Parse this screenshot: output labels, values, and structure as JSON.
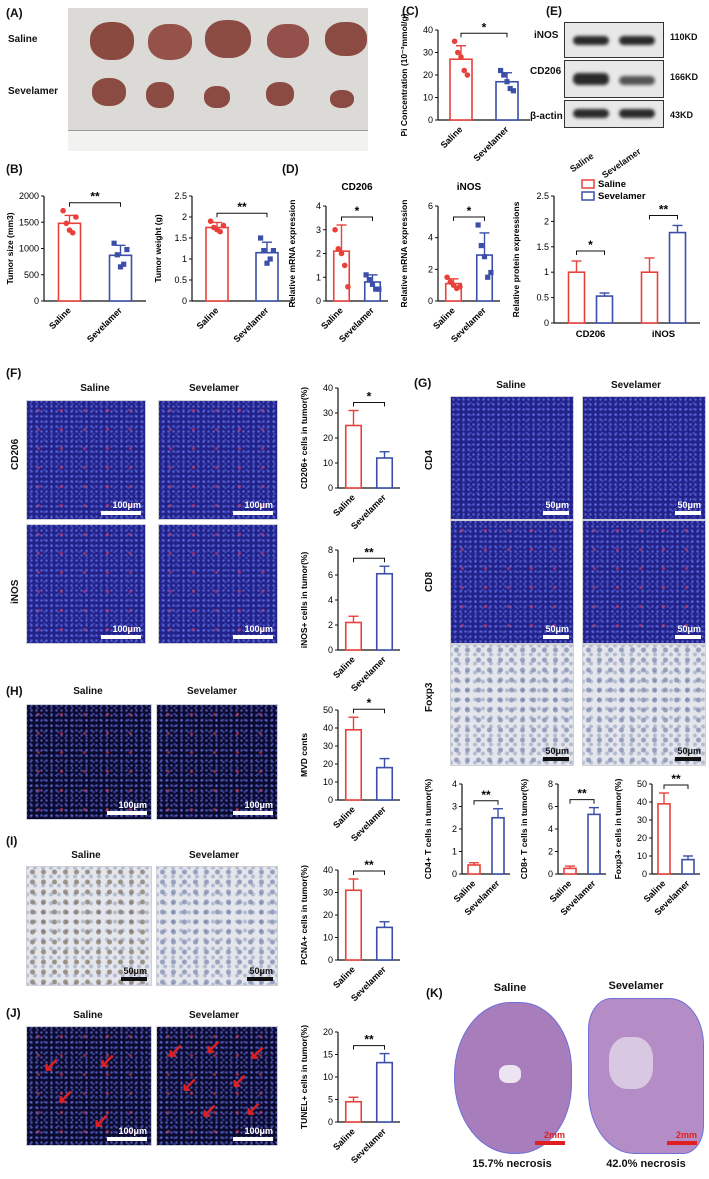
{
  "panels": {
    "a": "(A)",
    "b": "(B)",
    "c": "(C)",
    "d": "(D)",
    "e": "(E)",
    "f": "(F)",
    "g": "(G)",
    "h": "(H)",
    "i": "(I)",
    "j": "(J)",
    "k": "(K)"
  },
  "labels": {
    "saline": "Saline",
    "sevelamer": "Sevelamer",
    "cd206": "CD206",
    "inos": "iNOS",
    "cd4": "CD4",
    "cd8": "CD8",
    "foxp3": "Foxp3",
    "bactin": "β-actin"
  },
  "blot": {
    "kd_inos": "110KD",
    "kd_cd206": "166KD",
    "kd_bactin": "43KD"
  },
  "scale": {
    "s100": "100μm",
    "s50": "50μm",
    "s2mm": "2mm"
  },
  "necrosis": {
    "saline": "15.7% necrosis",
    "sevelamer": "42.0% necrosis"
  },
  "colors": {
    "saline": "#e8413b",
    "sevelamer": "#3b4fa8"
  },
  "chart_data": [
    {
      "id": "B1",
      "type": "bar",
      "categories": [
        "Saline",
        "Sevelamer"
      ],
      "values": [
        1480,
        870
      ],
      "errors": [
        150,
        190
      ],
      "ylabel": "Tumor  size (mm3)",
      "ylim": [
        0,
        2000
      ],
      "yticks": [
        0,
        500,
        1000,
        1500,
        2000
      ],
      "sig": "**",
      "points": [
        [
          1720,
          1480,
          1350,
          1300,
          1600
        ],
        [
          1100,
          880,
          650,
          700,
          980
        ]
      ]
    },
    {
      "id": "B2",
      "type": "bar",
      "categories": [
        "Saline",
        "Sevelamer"
      ],
      "values": [
        1.75,
        1.15
      ],
      "errors": [
        0.12,
        0.25
      ],
      "ylabel": "Tumor weight (g)",
      "ylim": [
        0,
        2.5
      ],
      "yticks": [
        0,
        0.5,
        1.0,
        1.5,
        2.0,
        2.5
      ],
      "sig": "**",
      "points": [
        [
          1.9,
          1.75,
          1.7,
          1.65,
          1.8
        ],
        [
          1.5,
          1.2,
          0.9,
          1.0,
          1.2
        ]
      ]
    },
    {
      "id": "C",
      "type": "bar",
      "categories": [
        "Saline",
        "Sevelamer"
      ],
      "values": [
        27,
        17
      ],
      "errors": [
        6,
        4
      ],
      "ylabel": "Pi Concentration (10⁻³mmol/g)",
      "ylim": [
        0,
        40
      ],
      "yticks": [
        0,
        10,
        20,
        30,
        40
      ],
      "sig": "*",
      "points": [
        [
          35,
          30,
          28,
          22,
          20
        ],
        [
          22,
          20,
          17,
          14,
          13
        ]
      ]
    },
    {
      "id": "D1",
      "type": "bar",
      "title": "CD206",
      "categories": [
        "Saline",
        "Sevelamer"
      ],
      "values": [
        2.1,
        0.8
      ],
      "errors": [
        1.1,
        0.3
      ],
      "ylabel": "Relative mRNA expression",
      "ylim": [
        0,
        4
      ],
      "yticks": [
        0,
        1,
        2,
        3,
        4
      ],
      "sig": "*",
      "points": [
        [
          3.0,
          2.2,
          2.0,
          1.5,
          0.6
        ],
        [
          1.1,
          0.9,
          0.7,
          0.5,
          0.5
        ]
      ]
    },
    {
      "id": "D2",
      "type": "bar",
      "title": "iNOS",
      "categories": [
        "Saline",
        "Sevelamer"
      ],
      "values": [
        1.1,
        2.9
      ],
      "errors": [
        0.3,
        1.4
      ],
      "ylabel": "Relative mRNA expression",
      "ylim": [
        0,
        6
      ],
      "yticks": [
        0,
        2,
        4,
        6
      ],
      "sig": "*",
      "points": [
        [
          1.5,
          1.2,
          1.0,
          0.8,
          0.9
        ],
        [
          4.8,
          3.5,
          2.8,
          1.5,
          1.8
        ]
      ]
    },
    {
      "id": "E",
      "type": "bar",
      "categories": [
        "CD206",
        "iNOS"
      ],
      "series": [
        {
          "name": "Saline",
          "values": [
            1.0,
            1.0
          ],
          "errors": [
            0.22,
            0.28
          ]
        },
        {
          "name": "Sevelamer",
          "values": [
            0.53,
            1.78
          ],
          "errors": [
            0.06,
            0.14
          ]
        }
      ],
      "ylabel": "Relative protein expressions",
      "ylim": [
        0,
        2.5
      ],
      "yticks": [
        0,
        0.5,
        1.0,
        1.5,
        2.0,
        2.5
      ],
      "sig": [
        "*",
        "**"
      ]
    },
    {
      "id": "F1",
      "type": "bar",
      "categories": [
        "Saline",
        "Sevelamer"
      ],
      "values": [
        25,
        12
      ],
      "errors": [
        6,
        2.5
      ],
      "ylabel": "CD206+ cells in tumor(%)",
      "ylim": [
        0,
        40
      ],
      "yticks": [
        0,
        10,
        20,
        30,
        40
      ],
      "sig": "*"
    },
    {
      "id": "F2",
      "type": "bar",
      "categories": [
        "Saline",
        "Sevelamer"
      ],
      "values": [
        2.2,
        6.1
      ],
      "errors": [
        0.5,
        0.6
      ],
      "ylabel": "iNOS+ cells in tumor(%)",
      "ylim": [
        0,
        8
      ],
      "yticks": [
        0,
        2,
        4,
        6,
        8
      ],
      "sig": "**"
    },
    {
      "id": "G1",
      "type": "bar",
      "categories": [
        "Saline",
        "Sevelamer"
      ],
      "values": [
        0.4,
        2.5
      ],
      "errors": [
        0.1,
        0.4
      ],
      "ylabel": "CD4+ T cells in tumor(%)",
      "ylim": [
        0,
        4
      ],
      "yticks": [
        0,
        1,
        2,
        3,
        4
      ],
      "sig": "**"
    },
    {
      "id": "G2",
      "type": "bar",
      "categories": [
        "Saline",
        "Sevelamer"
      ],
      "values": [
        0.5,
        5.3
      ],
      "errors": [
        0.2,
        0.6
      ],
      "ylabel": "CD8+ T cells in tumor(%)",
      "ylim": [
        0,
        8
      ],
      "yticks": [
        0,
        2,
        4,
        6,
        8
      ],
      "sig": "**"
    },
    {
      "id": "G3",
      "type": "bar",
      "categories": [
        "Saline",
        "Sevelamer"
      ],
      "values": [
        39,
        8
      ],
      "errors": [
        6,
        2
      ],
      "ylabel": "Foxp3+ cells in tumor(%)",
      "ylim": [
        0,
        50
      ],
      "yticks": [
        0,
        10,
        20,
        30,
        40,
        50
      ],
      "sig": "**"
    },
    {
      "id": "H",
      "type": "bar",
      "categories": [
        "Saline",
        "Sevelamer"
      ],
      "values": [
        39,
        18
      ],
      "errors": [
        7,
        5
      ],
      "ylabel": "MVD conts",
      "ylim": [
        0,
        50
      ],
      "yticks": [
        0,
        10,
        20,
        30,
        40,
        50
      ],
      "sig": "*"
    },
    {
      "id": "I",
      "type": "bar",
      "categories": [
        "Saline",
        "Sevelamer"
      ],
      "values": [
        31,
        14.5
      ],
      "errors": [
        5,
        2.5
      ],
      "ylabel": "PCNA+ cells in tumor(%)",
      "ylim": [
        0,
        40
      ],
      "yticks": [
        0,
        10,
        20,
        30,
        40
      ],
      "sig": "**"
    },
    {
      "id": "J",
      "type": "bar",
      "categories": [
        "Saline",
        "Sevelamer"
      ],
      "values": [
        4.5,
        13.2
      ],
      "errors": [
        1,
        2
      ],
      "ylabel": "TUNEL+ cells in tumor(%)",
      "ylim": [
        0,
        20
      ],
      "yticks": [
        0,
        5,
        10,
        15,
        20
      ],
      "sig": "**"
    }
  ]
}
